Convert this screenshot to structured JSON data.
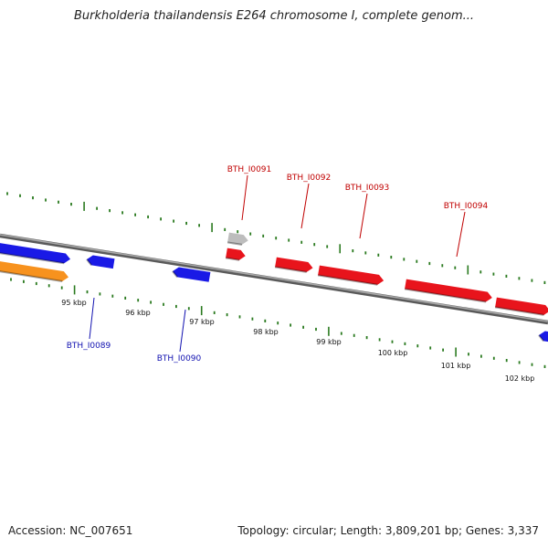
{
  "title": "Burkholderia thailandensis E264 chromosome I, complete genom...",
  "footer": {
    "accession": "Accession: NC_007651",
    "summary": "Topology: circular; Length: 3,809,201 bp; Genes: 3,337"
  },
  "colors": {
    "backbone": "#888888",
    "tick": "#2a7a1f",
    "forward_gene": "#e8141c",
    "reverse_gene": "#1a1ae6",
    "orange_gene": "#f7921e",
    "gray_gene": "#bdbdbd",
    "forward_label": "#c00000",
    "reverse_label": "#1010b0"
  },
  "position_labels": [
    "95 kbp",
    "96 kbp",
    "97 kbp",
    "98 kbp",
    "99 kbp",
    "100 kbp",
    "101 kbp",
    "102 kbp"
  ],
  "gene_labels": {
    "forward": [
      "BTH_I0091",
      "BTH_I0092",
      "BTH_I0093",
      "BTH_I0094"
    ],
    "reverse": [
      "BTH_I0089",
      "BTH_I0090"
    ]
  }
}
